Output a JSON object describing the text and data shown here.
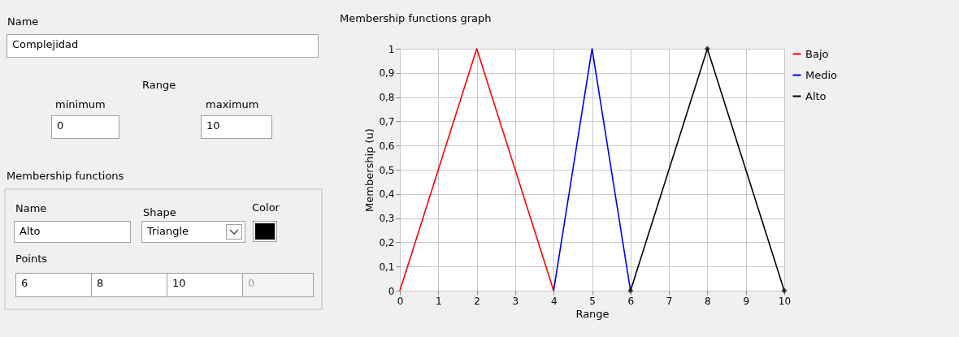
{
  "chart_data": [
    {
      "type": "other",
      "annotations": [
        "Name",
        "Complejidad",
        "Range",
        "minimum",
        "0",
        "maximum",
        "10",
        "Membership functions",
        "Name",
        "Alto",
        "Shape",
        "Triangle",
        "Color",
        "Points",
        "6",
        "8",
        "10",
        "0"
      ]
    },
    {
      "type": "line",
      "title": "Membership functions graph",
      "xlabel": "Range",
      "ylabel": "Membership (u)",
      "series": [
        {
          "name": "Bajo",
          "color": "#ff0000",
          "x": [
            0,
            2,
            4
          ],
          "values": [
            0,
            1,
            0
          ]
        },
        {
          "name": "Medio",
          "color": "#0000ff",
          "x": [
            4,
            5,
            6
          ],
          "values": [
            0,
            1,
            0
          ]
        },
        {
          "name": "Alto",
          "color": "#000000",
          "x": [
            6,
            8,
            10
          ],
          "values": [
            0,
            1,
            0
          ],
          "marker": "diamond"
        }
      ],
      "xlim": [
        0,
        10
      ],
      "xticks": [
        0,
        1,
        2,
        3,
        4,
        5,
        6,
        7,
        8,
        9,
        10
      ],
      "ylim": [
        0,
        1
      ],
      "yticks": [
        0,
        {
          "value": 0.1,
          "label": "0,1"
        },
        {
          "value": 0.2,
          "label": "0,2"
        },
        {
          "value": 0.3,
          "label": "0,3"
        },
        {
          "value": 0.4,
          "label": "0,4"
        },
        {
          "value": 0.5,
          "label": "0,5"
        },
        {
          "value": 0.6,
          "label": "0,6"
        },
        {
          "value": 0.7,
          "label": "0,7"
        },
        {
          "value": 0.8,
          "label": "0,8"
        },
        {
          "value": 0.9,
          "label": "0,9"
        },
        1
      ],
      "grid": true,
      "legend": "right"
    }
  ]
}
